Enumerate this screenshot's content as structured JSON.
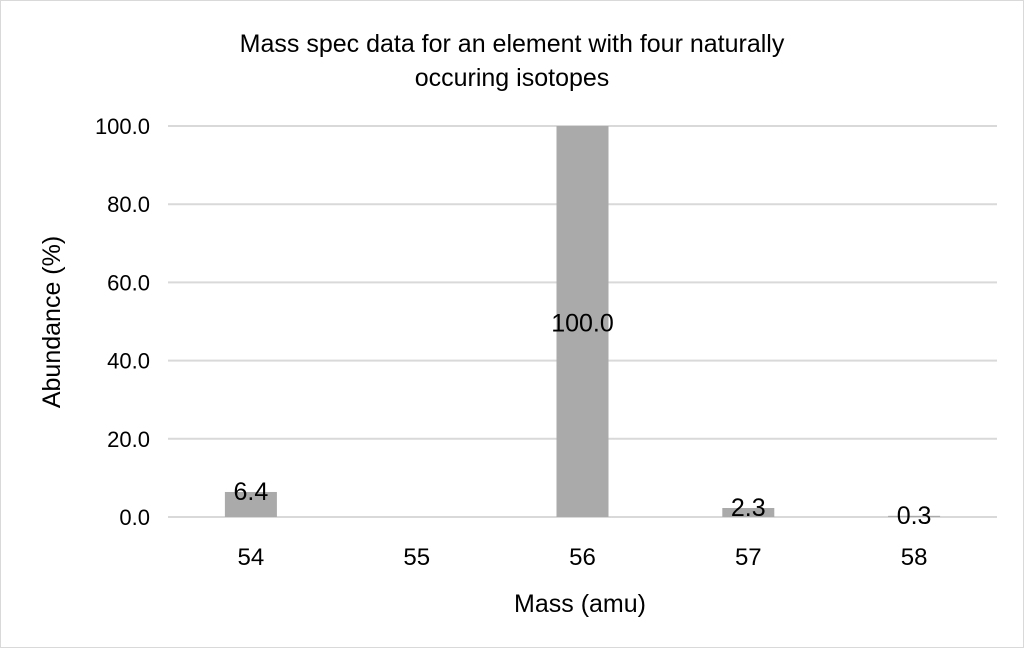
{
  "chart_data": {
    "type": "bar",
    "title": "Mass spec data for an element with four naturally occuring isotopes",
    "title_lines": [
      "Mass spec data for an element with four naturally",
      "occuring isotopes"
    ],
    "xlabel": "Mass (amu)",
    "ylabel": "Abundance (%)",
    "categories": [
      "54",
      "55",
      "56",
      "57",
      "58"
    ],
    "values": [
      6.4,
      null,
      100.0,
      2.3,
      0.3
    ],
    "data_labels": [
      "6.4",
      "",
      "100.0",
      "2.3",
      "0.3"
    ],
    "ylim": [
      0,
      100
    ],
    "yticks": [
      "0.0",
      "20.0",
      "40.0",
      "60.0",
      "80.0",
      "100.0"
    ],
    "grid": true,
    "legend": "none",
    "bar_color": "#aaaaaa",
    "grid_color": "#d9d9d9"
  }
}
